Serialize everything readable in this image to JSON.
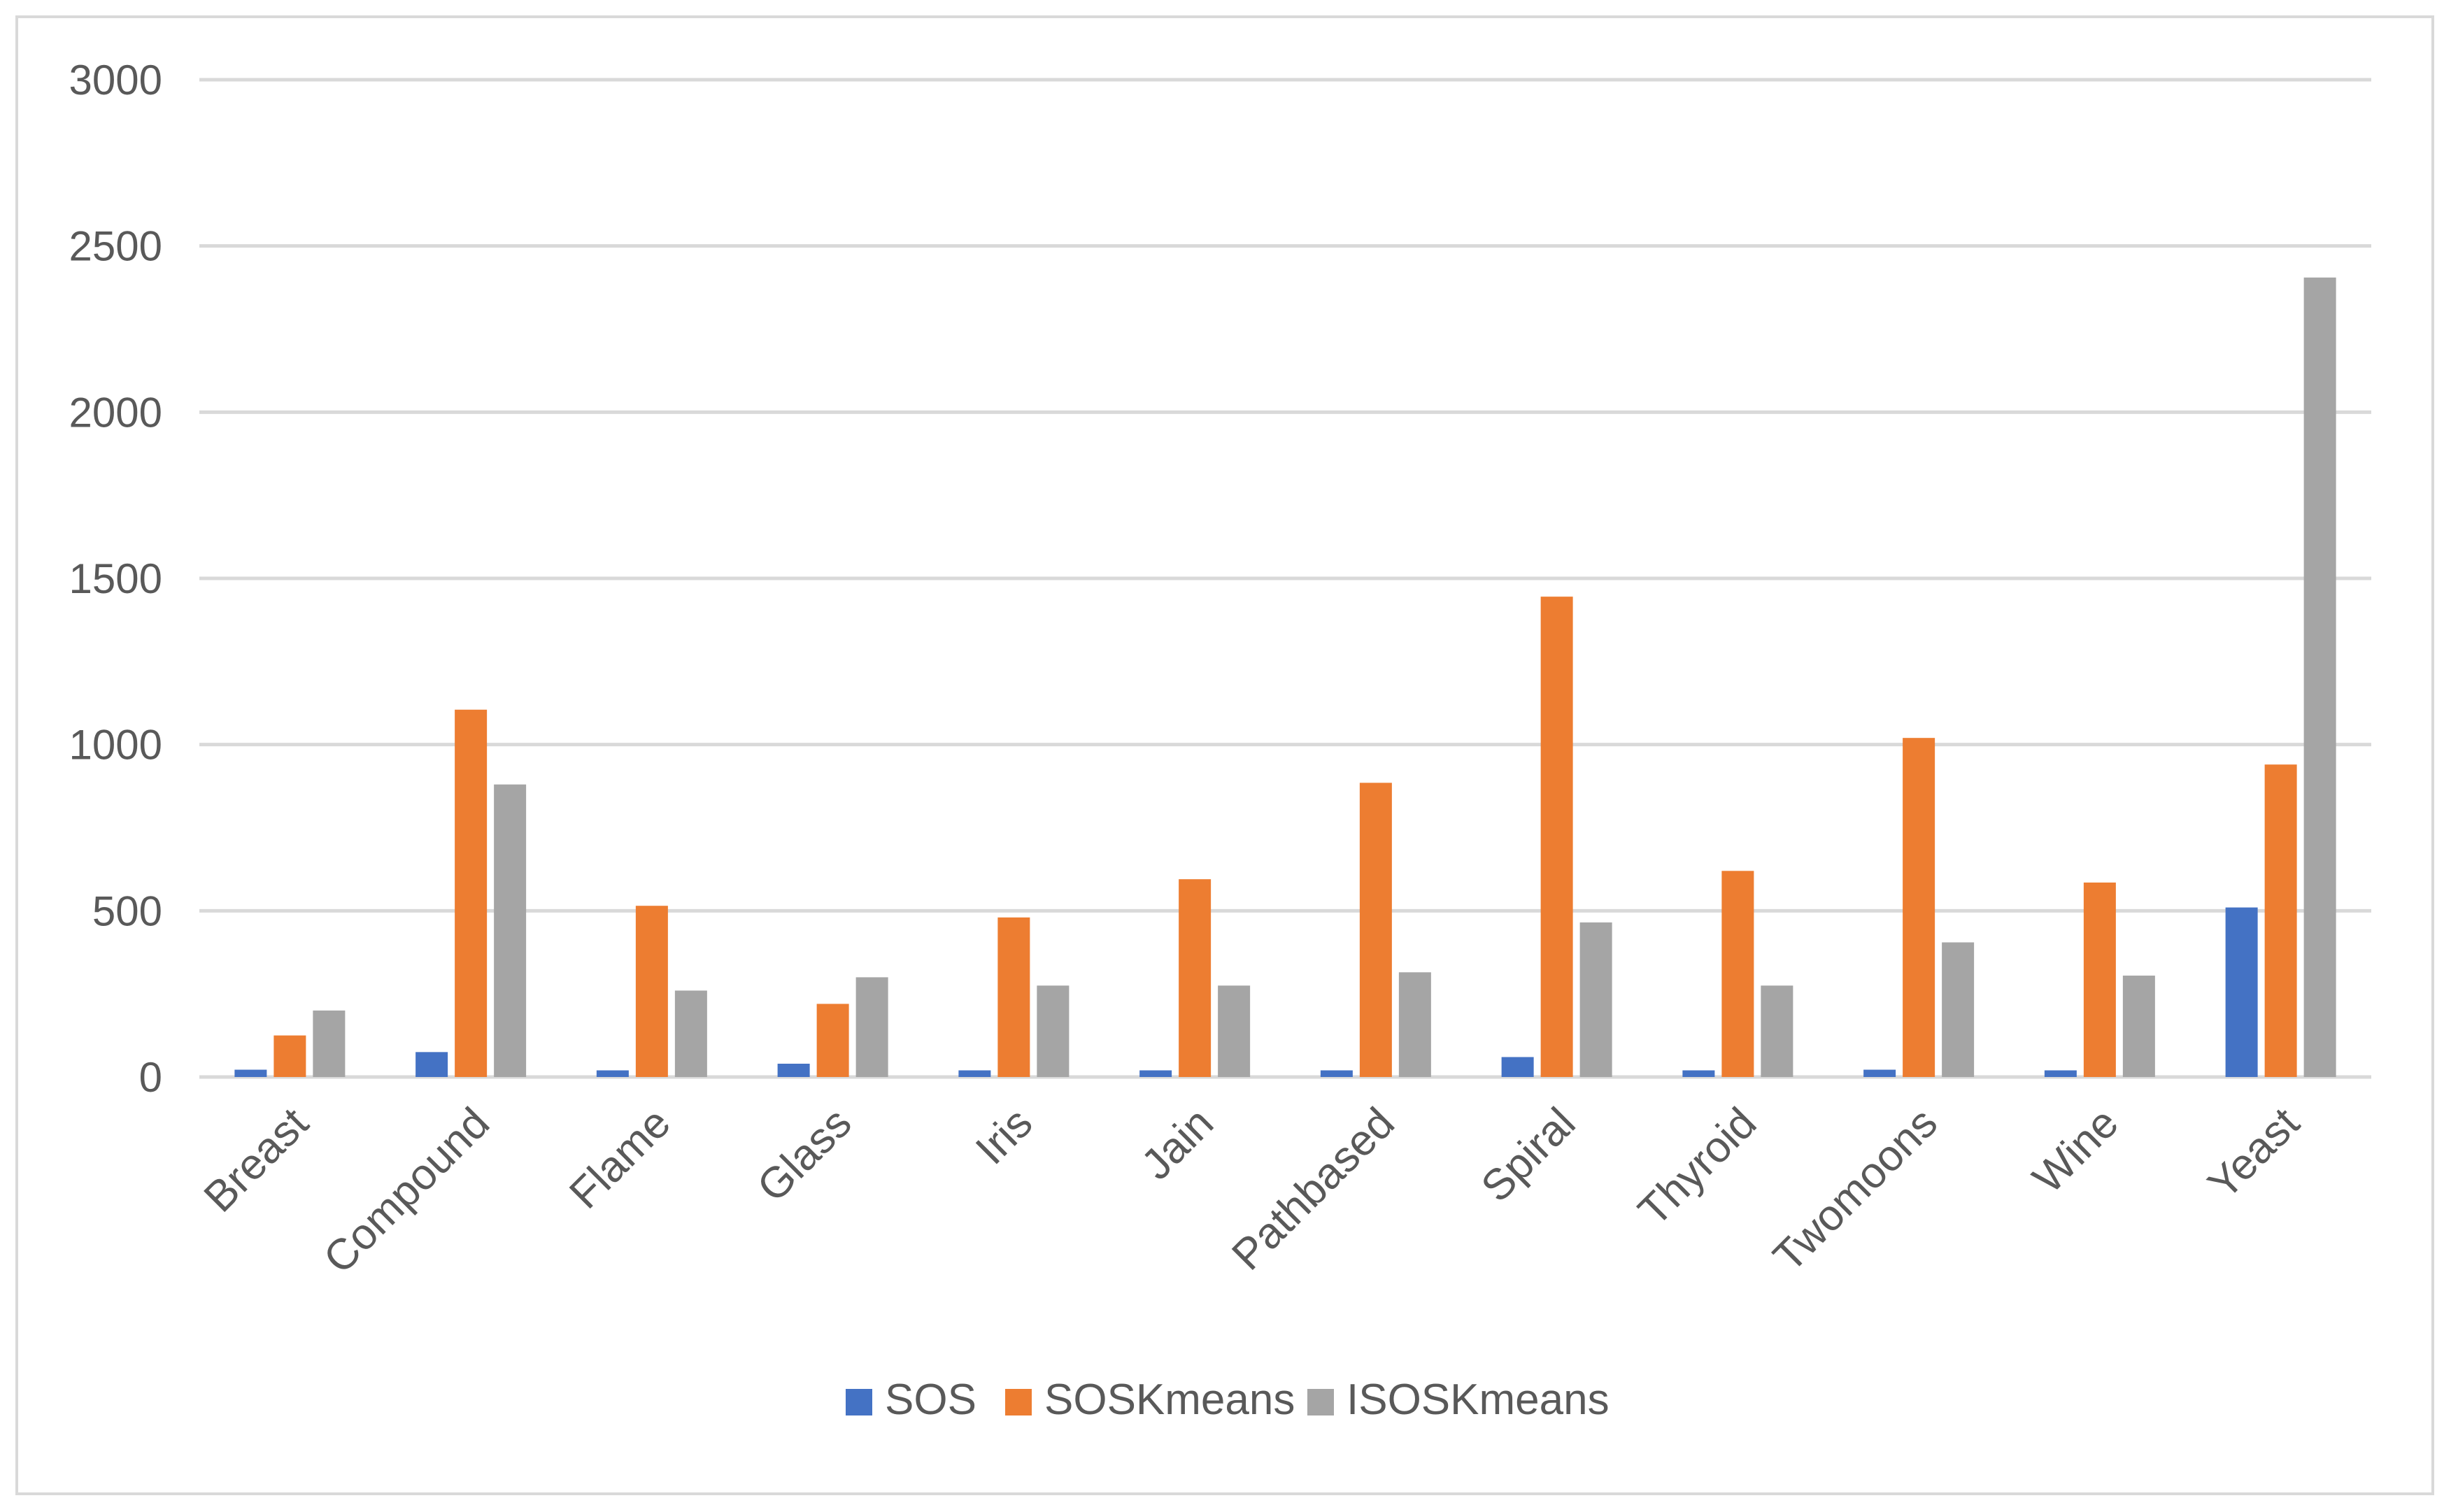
{
  "chart_data": {
    "type": "bar",
    "title": "",
    "xlabel": "",
    "ylabel": "",
    "ylim": [
      0,
      3000
    ],
    "yticks": [
      0,
      500,
      1000,
      1500,
      2000,
      2500,
      3000
    ],
    "grid": true,
    "legend_position": "bottom",
    "categories": [
      "Breast",
      "Compound",
      "Flame",
      "Glass",
      "Iris",
      "Jain",
      "Pathbased",
      "Spiral",
      "Thyroid",
      "Twomoons",
      "Wine",
      "Yeast"
    ],
    "series": [
      {
        "name": "SOS",
        "color": "#4472c4",
        "values": [
          22,
          75,
          20,
          40,
          20,
          20,
          20,
          60,
          20,
          22,
          20,
          510
        ]
      },
      {
        "name": "SOSKmeans",
        "color": "#ed7d31",
        "values": [
          125,
          1105,
          515,
          220,
          480,
          595,
          885,
          1445,
          620,
          1020,
          585,
          940
        ]
      },
      {
        "name": "ISOSKmeans",
        "color": "#a5a5a5",
        "values": [
          200,
          880,
          260,
          300,
          275,
          275,
          315,
          465,
          275,
          405,
          305,
          2405
        ]
      }
    ]
  }
}
